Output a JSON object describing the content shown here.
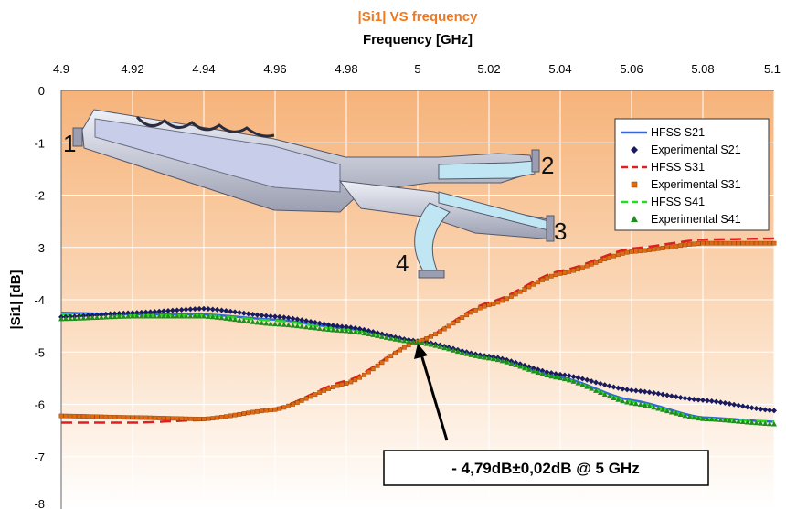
{
  "chart_data": {
    "type": "line",
    "title": "|Si1| VS frequency",
    "xlabel": "Frequency [GHz]",
    "ylabel": "|Si1| [dB]",
    "xlim": [
      4.9,
      5.1
    ],
    "ylim": [
      -8,
      0
    ],
    "x_axis_position": "top",
    "x_ticks": [
      "4.9",
      "4.92",
      "4.94",
      "4.96",
      "4.98",
      "5",
      "5.02",
      "5.04",
      "5.06",
      "5.08",
      "5.1"
    ],
    "y_ticks": [
      "0",
      "-1",
      "-2",
      "-3",
      "-4",
      "-5",
      "-6",
      "-7",
      "-8"
    ],
    "grid": true,
    "background": "orange vertical gradient",
    "legend_position": "top-right",
    "legend": [
      "HFSS S21",
      "Experimental S21",
      "HFSS S31",
      "Experimental S31",
      "HFSS S41",
      "Experimental S41"
    ],
    "series": [
      {
        "name": "HFSS S21",
        "kind": "line",
        "style": "solid",
        "color": "#3366dd",
        "x": [
          4.9,
          4.92,
          4.94,
          4.96,
          4.98,
          5.0,
          5.02,
          5.04,
          5.06,
          5.08,
          5.1
        ],
        "y": [
          -4.25,
          -4.28,
          -4.28,
          -4.38,
          -4.55,
          -4.79,
          -5.1,
          -5.48,
          -5.92,
          -6.25,
          -6.33
        ]
      },
      {
        "name": "Experimental S21",
        "kind": "markers",
        "marker": "diamond",
        "color": "#1a1a5e",
        "x": [
          4.9,
          4.92,
          4.94,
          4.96,
          4.98,
          5.0,
          5.02,
          5.04,
          5.06,
          5.08,
          5.1
        ],
        "y": [
          -4.33,
          -4.25,
          -4.17,
          -4.32,
          -4.52,
          -4.79,
          -5.08,
          -5.43,
          -5.73,
          -5.92,
          -6.12
        ]
      },
      {
        "name": "HFSS S31",
        "kind": "line",
        "style": "dashed",
        "color": "#e02020",
        "x": [
          4.9,
          4.92,
          4.94,
          4.96,
          4.98,
          5.0,
          5.02,
          5.04,
          5.06,
          5.08,
          5.1
        ],
        "y": [
          -6.35,
          -6.35,
          -6.3,
          -6.08,
          -5.55,
          -4.79,
          -4.05,
          -3.45,
          -3.02,
          -2.85,
          -2.83
        ]
      },
      {
        "name": "Experimental S31",
        "kind": "markers",
        "marker": "square",
        "color": "#e06a10",
        "x": [
          4.9,
          4.92,
          4.94,
          4.96,
          4.98,
          5.0,
          5.02,
          5.04,
          5.06,
          5.08,
          5.1
        ],
        "y": [
          -6.22,
          -6.25,
          -6.28,
          -6.1,
          -5.6,
          -4.8,
          -4.1,
          -3.5,
          -3.08,
          -2.92,
          -2.92
        ]
      },
      {
        "name": "HFSS S41",
        "kind": "line",
        "style": "dashed",
        "color": "#22dd22",
        "x": [
          4.9,
          4.92,
          4.94,
          4.96,
          4.98,
          5.0,
          5.02,
          5.04,
          5.06,
          5.08,
          5.1
        ],
        "y": [
          -4.28,
          -4.3,
          -4.3,
          -4.4,
          -4.57,
          -4.79,
          -5.1,
          -5.5,
          -5.95,
          -6.27,
          -6.33
        ]
      },
      {
        "name": "Experimental S41",
        "kind": "markers",
        "marker": "triangle",
        "color": "#1e8f1e",
        "x": [
          4.9,
          4.92,
          4.94,
          4.96,
          4.98,
          5.0,
          5.02,
          5.04,
          5.06,
          5.08,
          5.1
        ],
        "y": [
          -4.37,
          -4.32,
          -4.32,
          -4.47,
          -4.6,
          -4.82,
          -5.12,
          -5.5,
          -5.98,
          -6.28,
          -6.38
        ]
      }
    ],
    "annotation": {
      "text": "- 4,79dB±0,02dB @ 5 GHz",
      "arrow_to": {
        "x": 5.0,
        "y": -4.79
      }
    },
    "inset_image": {
      "description": "waveguide device rendering",
      "port_labels": [
        "1",
        "2",
        "3",
        "4"
      ]
    }
  }
}
